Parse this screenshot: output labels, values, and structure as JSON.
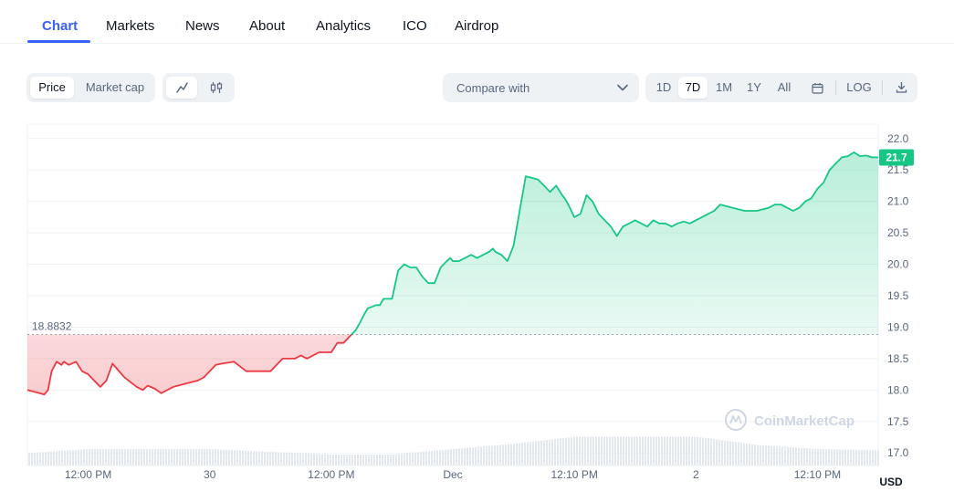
{
  "tabs": [
    {
      "label": "Chart"
    },
    {
      "label": "Markets"
    },
    {
      "label": "News"
    },
    {
      "label": "About"
    },
    {
      "label": "Analytics"
    },
    {
      "label": "ICO"
    },
    {
      "label": "Airdrop"
    }
  ],
  "toolbar": {
    "metric_options": [
      "Price",
      "Market cap"
    ],
    "selected_metric": "Price",
    "chart_styles": [
      "line-chart-icon",
      "candlestick-icon"
    ],
    "selected_style": "line-chart-icon",
    "compare_label": "Compare with",
    "ranges": [
      "1D",
      "7D",
      "1M",
      "1Y",
      "All"
    ],
    "selected_range": "7D",
    "log_label": "LOG"
  },
  "colors": {
    "accent": "#3861fb",
    "up": "#16c784",
    "down": "#ea3943",
    "grid": "#eff2f5",
    "text_muted": "#58667e"
  },
  "chart_data": {
    "type": "area",
    "reference_value": 18.8832,
    "reference_label": "18.8832",
    "current_value": 21.7,
    "current_label": "21.7",
    "currency_label": "USD",
    "watermark": "CoinMarketCap",
    "ylim": [
      16.8,
      22.2
    ],
    "y_ticks": [
      {
        "label": "22.0",
        "value": 22.0
      },
      {
        "label": "21.5",
        "value": 21.5
      },
      {
        "label": "21.0",
        "value": 21.0
      },
      {
        "label": "20.5",
        "value": 20.5
      },
      {
        "label": "20.0",
        "value": 20.0
      },
      {
        "label": "19.5",
        "value": 19.5
      },
      {
        "label": "19.0",
        "value": 19.0
      },
      {
        "label": "18.5",
        "value": 18.5
      },
      {
        "label": "18.0",
        "value": 18.0
      },
      {
        "label": "17.5",
        "value": 17.5
      },
      {
        "label": "17.0",
        "value": 17.0
      }
    ],
    "xlim": [
      0,
      7
    ],
    "x_ticks": [
      {
        "label": "12:00 PM",
        "value": 0.5
      },
      {
        "label": "30",
        "value": 1.5
      },
      {
        "label": "12:00 PM",
        "value": 2.5
      },
      {
        "label": "Dec",
        "value": 3.5
      },
      {
        "label": "12:10 PM",
        "value": 4.5
      },
      {
        "label": "2",
        "value": 5.5
      },
      {
        "label": "12:10 PM",
        "value": 6.5
      }
    ],
    "series": [
      {
        "x": [
          0.0,
          0.1,
          0.14,
          0.17,
          0.2,
          0.24,
          0.28,
          0.3,
          0.34,
          0.4,
          0.45,
          0.5,
          0.55,
          0.6,
          0.65,
          0.7,
          0.8,
          0.9,
          0.95,
          0.99,
          1.05,
          1.1,
          1.2,
          1.3,
          1.4,
          1.45,
          1.5,
          1.55,
          1.6,
          1.7,
          1.8,
          1.9,
          2.0,
          2.1,
          2.2,
          2.25,
          2.3,
          2.4,
          2.5,
          2.55,
          2.6,
          2.7,
          2.73,
          2.77,
          2.8,
          2.87,
          2.9,
          2.93,
          3.0,
          3.05,
          3.1,
          3.15,
          3.2,
          3.25,
          3.3,
          3.35,
          3.4,
          3.45,
          3.48,
          3.5,
          3.55,
          3.6,
          3.65,
          3.7,
          3.75,
          3.8,
          3.83,
          3.85,
          3.9,
          3.95,
          4.0,
          4.05,
          4.1,
          4.2,
          4.25,
          4.3,
          4.35,
          4.4,
          4.42,
          4.45,
          4.5,
          4.55,
          4.6,
          4.65,
          4.7,
          4.75,
          4.8,
          4.85,
          4.9,
          4.95,
          5.0,
          5.05,
          5.1,
          5.15,
          5.2,
          5.25,
          5.3,
          5.35,
          5.4,
          5.45,
          5.5,
          5.55,
          5.6,
          5.65,
          5.7,
          5.8,
          5.9,
          6.0,
          6.1,
          6.15,
          6.2,
          6.25,
          6.3,
          6.35,
          6.4,
          6.45,
          6.5,
          6.55,
          6.6,
          6.65,
          6.7,
          6.75,
          6.8,
          6.85,
          6.9,
          6.95,
          7.0
        ],
        "y": [
          18.0,
          17.95,
          17.93,
          18.0,
          18.3,
          18.45,
          18.4,
          18.45,
          18.4,
          18.45,
          18.3,
          18.25,
          18.15,
          18.05,
          18.15,
          18.42,
          18.2,
          18.05,
          18.0,
          18.07,
          18.02,
          17.95,
          18.05,
          18.1,
          18.15,
          18.2,
          18.3,
          18.4,
          18.42,
          18.45,
          18.3,
          18.3,
          18.3,
          18.5,
          18.5,
          18.55,
          18.5,
          18.6,
          18.6,
          18.75,
          18.75,
          18.95,
          19.05,
          19.2,
          19.3,
          19.35,
          19.35,
          19.45,
          19.45,
          19.9,
          20.0,
          19.95,
          19.95,
          19.8,
          19.7,
          19.7,
          19.95,
          20.05,
          20.1,
          20.05,
          20.05,
          20.1,
          20.15,
          20.1,
          20.15,
          20.2,
          20.25,
          20.2,
          20.15,
          20.05,
          20.3,
          20.85,
          21.4,
          21.35,
          21.25,
          21.15,
          21.25,
          21.1,
          21.05,
          20.95,
          20.75,
          20.8,
          21.1,
          21.0,
          20.8,
          20.7,
          20.6,
          20.45,
          20.6,
          20.65,
          20.7,
          20.65,
          20.6,
          20.7,
          20.65,
          20.65,
          20.6,
          20.65,
          20.68,
          20.65,
          20.7,
          20.75,
          20.8,
          20.85,
          20.95,
          20.9,
          20.85,
          20.85,
          20.9,
          20.95,
          20.95,
          20.9,
          20.85,
          20.9,
          21.0,
          21.05,
          21.2,
          21.3,
          21.5,
          21.6,
          21.7,
          21.72,
          21.78,
          21.72,
          21.73,
          21.7,
          21.7
        ]
      }
    ],
    "volume": {
      "x": [
        0.0,
        0.5,
        1.0,
        1.5,
        2.0,
        2.5,
        3.0,
        3.5,
        4.0,
        4.5,
        5.0,
        5.5,
        6.0,
        6.5,
        7.0
      ],
      "y": [
        0.3,
        0.4,
        0.4,
        0.4,
        0.33,
        0.27,
        0.27,
        0.4,
        0.53,
        0.7,
        0.7,
        0.7,
        0.5,
        0.4,
        0.37
      ]
    }
  }
}
